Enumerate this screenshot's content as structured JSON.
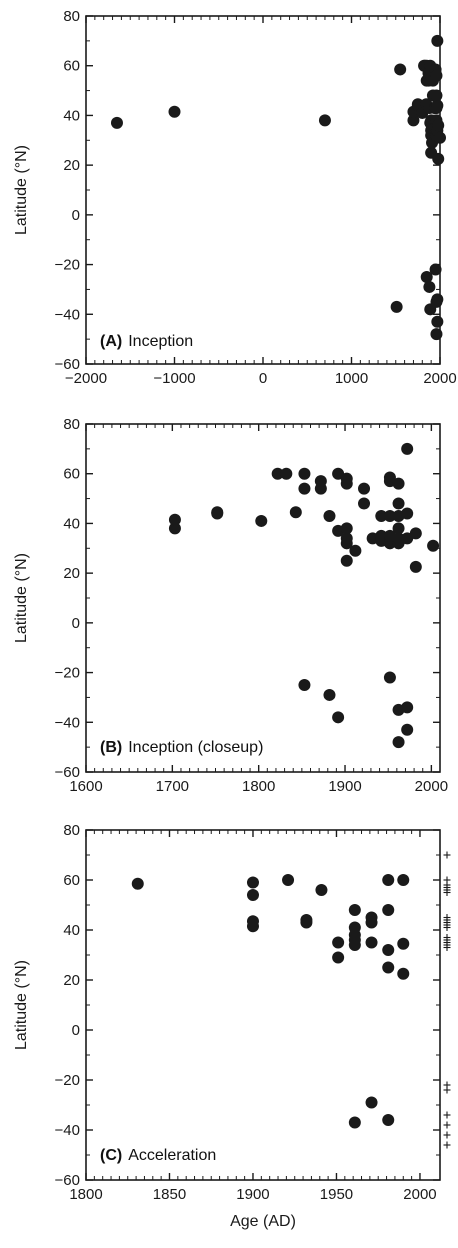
{
  "chart_data": [
    {
      "type": "scatter",
      "panel_letter": "(A)",
      "panel_title": "Inception",
      "ylabel": "Latitude (°N)",
      "xlabel": "",
      "xlim": [
        -2000,
        2000
      ],
      "ylim": [
        -60,
        80
      ],
      "x_ticks": [
        -2000,
        -1000,
        0,
        1000,
        2000
      ],
      "x_tick_labels": [
        "−2000",
        "−1000",
        "0",
        "1000",
        "2000"
      ],
      "y_ticks": [
        -60,
        -40,
        -20,
        0,
        20,
        40,
        60,
        80
      ],
      "y_tick_labels": [
        "−60",
        "−40",
        "−20",
        "0",
        "20",
        "40",
        "60",
        "80"
      ],
      "grid": false,
      "marker_color": "#1a1a1a",
      "points": [
        {
          "x": -1650,
          "y": 37
        },
        {
          "x": -1000,
          "y": 41.5
        },
        {
          "x": 700,
          "y": 38
        },
        {
          "x": 1510,
          "y": -37
        },
        {
          "x": 1550,
          "y": 58.5
        },
        {
          "x": 1700,
          "y": 38
        },
        {
          "x": 1700,
          "y": 41.5
        },
        {
          "x": 1750,
          "y": 44
        },
        {
          "x": 1750,
          "y": 44.5
        },
        {
          "x": 1800,
          "y": 41
        },
        {
          "x": 1820,
          "y": 60
        },
        {
          "x": 1830,
          "y": 60
        },
        {
          "x": 1845,
          "y": 44.5
        },
        {
          "x": 1850,
          "y": 54
        },
        {
          "x": 1850,
          "y": 60
        },
        {
          "x": 1850,
          "y": -25
        },
        {
          "x": 1870,
          "y": 54
        },
        {
          "x": 1870,
          "y": 57
        },
        {
          "x": 1880,
          "y": 43
        },
        {
          "x": 1880,
          "y": -29
        },
        {
          "x": 1890,
          "y": 37
        },
        {
          "x": 1890,
          "y": 60
        },
        {
          "x": 1890,
          "y": -38
        },
        {
          "x": 1900,
          "y": 25
        },
        {
          "x": 1900,
          "y": 32
        },
        {
          "x": 1900,
          "y": 34
        },
        {
          "x": 1900,
          "y": 38
        },
        {
          "x": 1900,
          "y": 56
        },
        {
          "x": 1900,
          "y": 58
        },
        {
          "x": 1910,
          "y": 29
        },
        {
          "x": 1920,
          "y": 48
        },
        {
          "x": 1920,
          "y": 54
        },
        {
          "x": 1930,
          "y": 34
        },
        {
          "x": 1940,
          "y": 33
        },
        {
          "x": 1940,
          "y": 34
        },
        {
          "x": 1940,
          "y": 35
        },
        {
          "x": 1940,
          "y": 43
        },
        {
          "x": 1950,
          "y": 32
        },
        {
          "x": 1950,
          "y": 34
        },
        {
          "x": 1950,
          "y": 35
        },
        {
          "x": 1950,
          "y": 43
        },
        {
          "x": 1950,
          "y": 57
        },
        {
          "x": 1950,
          "y": 58.5
        },
        {
          "x": 1950,
          "y": -22
        },
        {
          "x": 1960,
          "y": 32
        },
        {
          "x": 1960,
          "y": 34
        },
        {
          "x": 1960,
          "y": 38
        },
        {
          "x": 1960,
          "y": 43
        },
        {
          "x": 1960,
          "y": 48
        },
        {
          "x": 1960,
          "y": 56
        },
        {
          "x": 1960,
          "y": -35
        },
        {
          "x": 1960,
          "y": -48
        },
        {
          "x": 1970,
          "y": 34
        },
        {
          "x": 1970,
          "y": 44
        },
        {
          "x": 1970,
          "y": 70
        },
        {
          "x": 1970,
          "y": -34
        },
        {
          "x": 1970,
          "y": -43
        },
        {
          "x": 1980,
          "y": 22.5
        },
        {
          "x": 1980,
          "y": 36
        },
        {
          "x": 2000,
          "y": 31
        }
      ]
    },
    {
      "type": "scatter",
      "panel_letter": "(B)",
      "panel_title": "Inception (closeup)",
      "ylabel": "Latitude (°N)",
      "xlabel": "",
      "xlim": [
        1600,
        2010
      ],
      "ylim": [
        -60,
        80
      ],
      "x_ticks": [
        1600,
        1700,
        1800,
        1900,
        2000
      ],
      "x_tick_labels": [
        "1600",
        "1700",
        "1800",
        "1900",
        "2000"
      ],
      "y_ticks": [
        -60,
        -40,
        -20,
        0,
        20,
        40,
        60,
        80
      ],
      "y_tick_labels": [
        "−60",
        "−40",
        "−20",
        "0",
        "20",
        "40",
        "60",
        "80"
      ],
      "grid": false,
      "marker_color": "#1a1a1a",
      "points": [
        {
          "x": 1703,
          "y": 38
        },
        {
          "x": 1703,
          "y": 41.5
        },
        {
          "x": 1752,
          "y": 44
        },
        {
          "x": 1752,
          "y": 44.5
        },
        {
          "x": 1803,
          "y": 41
        },
        {
          "x": 1822,
          "y": 60
        },
        {
          "x": 1832,
          "y": 60
        },
        {
          "x": 1843,
          "y": 44.5
        },
        {
          "x": 1853,
          "y": 54
        },
        {
          "x": 1853,
          "y": 60
        },
        {
          "x": 1853,
          "y": -25
        },
        {
          "x": 1872,
          "y": 54
        },
        {
          "x": 1872,
          "y": 57
        },
        {
          "x": 1882,
          "y": 43
        },
        {
          "x": 1882,
          "y": -29
        },
        {
          "x": 1892,
          "y": 37
        },
        {
          "x": 1892,
          "y": 60
        },
        {
          "x": 1892,
          "y": -38
        },
        {
          "x": 1902,
          "y": 25
        },
        {
          "x": 1902,
          "y": 32
        },
        {
          "x": 1902,
          "y": 34
        },
        {
          "x": 1902,
          "y": 38
        },
        {
          "x": 1902,
          "y": 56
        },
        {
          "x": 1902,
          "y": 58
        },
        {
          "x": 1912,
          "y": 29
        },
        {
          "x": 1922,
          "y": 48
        },
        {
          "x": 1922,
          "y": 54
        },
        {
          "x": 1932,
          "y": 34
        },
        {
          "x": 1942,
          "y": 33
        },
        {
          "x": 1942,
          "y": 34
        },
        {
          "x": 1942,
          "y": 35
        },
        {
          "x": 1942,
          "y": 43
        },
        {
          "x": 1952,
          "y": 32
        },
        {
          "x": 1952,
          "y": 34
        },
        {
          "x": 1952,
          "y": 35
        },
        {
          "x": 1952,
          "y": 43
        },
        {
          "x": 1952,
          "y": 57
        },
        {
          "x": 1952,
          "y": 58.5
        },
        {
          "x": 1952,
          "y": -22
        },
        {
          "x": 1962,
          "y": 32
        },
        {
          "x": 1962,
          "y": 34
        },
        {
          "x": 1962,
          "y": 38
        },
        {
          "x": 1962,
          "y": 43
        },
        {
          "x": 1962,
          "y": 48
        },
        {
          "x": 1962,
          "y": 56
        },
        {
          "x": 1962,
          "y": -35
        },
        {
          "x": 1962,
          "y": -48
        },
        {
          "x": 1972,
          "y": 34
        },
        {
          "x": 1972,
          "y": 44
        },
        {
          "x": 1972,
          "y": 70
        },
        {
          "x": 1972,
          "y": -34
        },
        {
          "x": 1972,
          "y": -43
        },
        {
          "x": 1982,
          "y": 22.5
        },
        {
          "x": 1982,
          "y": 36
        },
        {
          "x": 2002,
          "y": 31
        }
      ]
    },
    {
      "type": "scatter",
      "panel_letter": "(C)",
      "panel_title": "Acceleration",
      "ylabel": "Latitude (°N)",
      "xlabel": "Age (AD)",
      "xlim": [
        1800,
        2012
      ],
      "ylim": [
        -60,
        80
      ],
      "x_ticks": [
        1800,
        1850,
        1900,
        1950,
        2000
      ],
      "x_tick_labels": [
        "1800",
        "1850",
        "1900",
        "1950",
        "2000"
      ],
      "y_ticks": [
        -60,
        -40,
        -20,
        0,
        20,
        40,
        60,
        80
      ],
      "y_tick_labels": [
        "−60",
        "−40",
        "−20",
        "0",
        "20",
        "40",
        "60",
        "80"
      ],
      "grid": false,
      "marker_color": "#1a1a1a",
      "points": [
        {
          "x": 1831,
          "y": 58.5
        },
        {
          "x": 1900,
          "y": 41.5
        },
        {
          "x": 1900,
          "y": 43.5
        },
        {
          "x": 1900,
          "y": 54
        },
        {
          "x": 1900,
          "y": 59
        },
        {
          "x": 1921,
          "y": 60
        },
        {
          "x": 1932,
          "y": 43
        },
        {
          "x": 1932,
          "y": 44
        },
        {
          "x": 1941,
          "y": 56
        },
        {
          "x": 1951,
          "y": 29
        },
        {
          "x": 1951,
          "y": 35
        },
        {
          "x": 1961,
          "y": 34
        },
        {
          "x": 1961,
          "y": 36
        },
        {
          "x": 1961,
          "y": 38
        },
        {
          "x": 1961,
          "y": 41
        },
        {
          "x": 1961,
          "y": 48
        },
        {
          "x": 1961,
          "y": -37
        },
        {
          "x": 1971,
          "y": 35
        },
        {
          "x": 1971,
          "y": 43
        },
        {
          "x": 1971,
          "y": 45
        },
        {
          "x": 1971,
          "y": -29
        },
        {
          "x": 1981,
          "y": 25
        },
        {
          "x": 1981,
          "y": 32
        },
        {
          "x": 1981,
          "y": 48
        },
        {
          "x": 1981,
          "y": 60
        },
        {
          "x": 1981,
          "y": -36
        },
        {
          "x": 1990,
          "y": 22.5
        },
        {
          "x": 1990,
          "y": 34.5
        },
        {
          "x": 1990,
          "y": 60
        }
      ],
      "side_marks": [
        70,
        60,
        58,
        57,
        56,
        55,
        45,
        44,
        43,
        42,
        41,
        37,
        36,
        35,
        34,
        33,
        -22,
        -24,
        -34,
        -38,
        -42,
        -46
      ]
    }
  ]
}
